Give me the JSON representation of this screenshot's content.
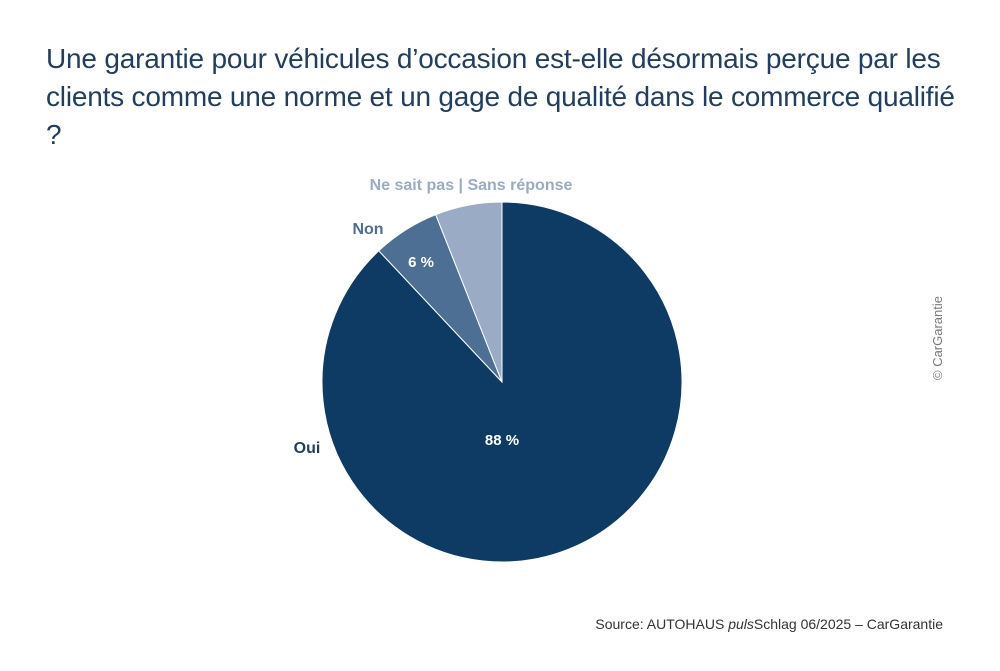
{
  "colors": {
    "title": "#1f3e63",
    "oui": "#0d3b63",
    "non": "#4c6f93",
    "nsp": "#9aabc6",
    "label_white": "#ffffff",
    "text_gray": "#7a7a7a"
  },
  "copyright": "© CarGarantie",
  "source": {
    "prefix": "Source: AUTOHAUS ",
    "italic": "puls",
    "suffix": "Schlag 06/2025 – CarGarantie"
  },
  "chart_data": {
    "type": "pie",
    "title": "Une garantie pour véhicules d’occasion est-elle désormais perçue par les clients comme une norme et un gage de qualité dans le commerce qualifié ?",
    "slices": [
      {
        "label": "Oui",
        "value": 88,
        "value_label": "88 %",
        "color": "#0d3b63"
      },
      {
        "label": "Non",
        "value": 6,
        "value_label": "6 %",
        "color": "#4c6f93"
      },
      {
        "label": "Ne sait pas | Sans réponse",
        "value": 6,
        "value_label": "",
        "color": "#9aabc6"
      }
    ],
    "start_angle_deg": 0,
    "direction": "clockwise"
  }
}
